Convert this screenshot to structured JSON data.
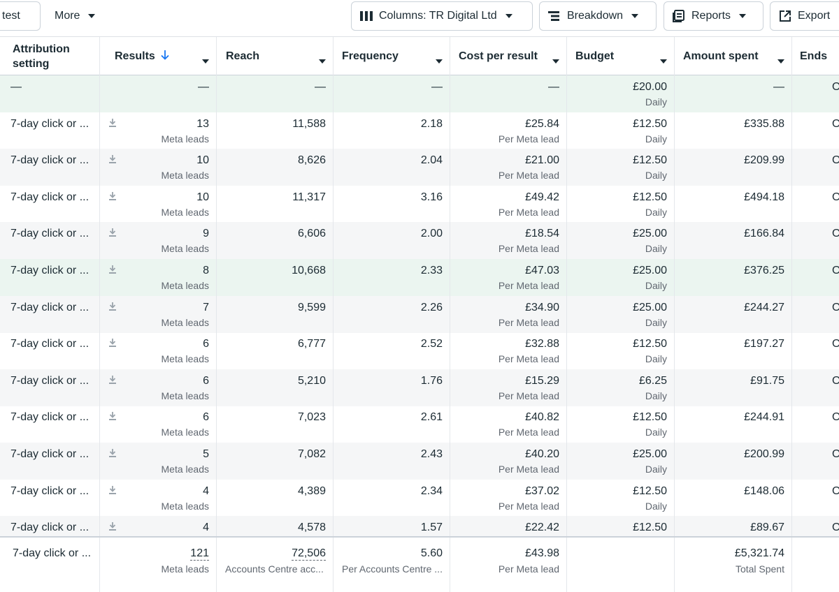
{
  "toolbar": {
    "test_label": "test",
    "more_label": "More",
    "columns_label": "Columns: TR Digital Ltd",
    "breakdown_label": "Breakdown",
    "reports_label": "Reports",
    "export_label": "Export"
  },
  "table": {
    "headers": {
      "attribution": "Attribution setting",
      "results": "Results",
      "reach": "Reach",
      "frequency": "Frequency",
      "cost": "Cost per result",
      "budget": "Budget",
      "amount": "Amount spent",
      "ends": "Ends"
    },
    "summary_row": {
      "attribution": "—",
      "results": "—",
      "reach": "—",
      "frequency": "—",
      "cost": "—",
      "budget": "£20.00",
      "budget_sub": "Daily",
      "amount": "—",
      "ends": "O"
    },
    "rows": [
      {
        "attribution": "7-day click or ...",
        "results": "13",
        "results_sub": "Meta leads",
        "reach": "11,588",
        "frequency": "2.18",
        "cost": "£25.84",
        "cost_sub": "Per Meta lead",
        "budget": "£12.50",
        "budget_sub": "Daily",
        "amount": "£335.88",
        "ends": "O"
      },
      {
        "attribution": "7-day click or ...",
        "results": "10",
        "results_sub": "Meta leads",
        "reach": "8,626",
        "frequency": "2.04",
        "cost": "£21.00",
        "cost_sub": "Per Meta lead",
        "budget": "£12.50",
        "budget_sub": "Daily",
        "amount": "£209.99",
        "ends": "O"
      },
      {
        "attribution": "7-day click or ...",
        "results": "10",
        "results_sub": "Meta leads",
        "reach": "11,317",
        "frequency": "3.16",
        "cost": "£49.42",
        "cost_sub": "Per Meta lead",
        "budget": "£12.50",
        "budget_sub": "Daily",
        "amount": "£494.18",
        "ends": "O"
      },
      {
        "attribution": "7-day click or ...",
        "results": "9",
        "results_sub": "Meta leads",
        "reach": "6,606",
        "frequency": "2.00",
        "cost": "£18.54",
        "cost_sub": "Per Meta lead",
        "budget": "£25.00",
        "budget_sub": "Daily",
        "amount": "£166.84",
        "ends": "O"
      },
      {
        "attribution": "7-day click or ...",
        "results": "8",
        "results_sub": "Meta leads",
        "reach": "10,668",
        "frequency": "2.33",
        "cost": "£47.03",
        "cost_sub": "Per Meta lead",
        "budget": "£25.00",
        "budget_sub": "Daily",
        "amount": "£376.25",
        "ends": "O"
      },
      {
        "attribution": "7-day click or ...",
        "results": "7",
        "results_sub": "Meta leads",
        "reach": "9,599",
        "frequency": "2.26",
        "cost": "£34.90",
        "cost_sub": "Per Meta lead",
        "budget": "£25.00",
        "budget_sub": "Daily",
        "amount": "£244.27",
        "ends": "O"
      },
      {
        "attribution": "7-day click or ...",
        "results": "6",
        "results_sub": "Meta leads",
        "reach": "6,777",
        "frequency": "2.52",
        "cost": "£32.88",
        "cost_sub": "Per Meta lead",
        "budget": "£12.50",
        "budget_sub": "Daily",
        "amount": "£197.27",
        "ends": "O"
      },
      {
        "attribution": "7-day click or ...",
        "results": "6",
        "results_sub": "Meta leads",
        "reach": "5,210",
        "frequency": "1.76",
        "cost": "£15.29",
        "cost_sub": "Per Meta lead",
        "budget": "£6.25",
        "budget_sub": "Daily",
        "amount": "£91.75",
        "ends": "O"
      },
      {
        "attribution": "7-day click or ...",
        "results": "6",
        "results_sub": "Meta leads",
        "reach": "7,023",
        "frequency": "2.61",
        "cost": "£40.82",
        "cost_sub": "Per Meta lead",
        "budget": "£12.50",
        "budget_sub": "Daily",
        "amount": "£244.91",
        "ends": "O"
      },
      {
        "attribution": "7-day click or ...",
        "results": "5",
        "results_sub": "Meta leads",
        "reach": "7,082",
        "frequency": "2.43",
        "cost": "£40.20",
        "cost_sub": "Per Meta lead",
        "budget": "£25.00",
        "budget_sub": "Daily",
        "amount": "£200.99",
        "ends": "O"
      },
      {
        "attribution": "7-day click or ...",
        "results": "4",
        "results_sub": "Meta leads",
        "reach": "4,389",
        "frequency": "2.34",
        "cost": "£37.02",
        "cost_sub": "Per Meta lead",
        "budget": "£12.50",
        "budget_sub": "Daily",
        "amount": "£148.06",
        "ends": "O"
      },
      {
        "attribution": "7-day click or ...",
        "results": "4",
        "results_sub": "",
        "reach": "4,578",
        "frequency": "1.57",
        "cost": "£22.42",
        "cost_sub": "",
        "budget": "£12.50",
        "budget_sub": "",
        "amount": "£89.67",
        "ends": "O"
      }
    ],
    "footer": {
      "attribution": "7-day click or ...",
      "results": "121",
      "results_sub": "Meta leads",
      "reach": "72,506",
      "reach_sub": "Accounts Centre acc...",
      "frequency": "5.60",
      "frequency_sub": "Per Accounts Centre ...",
      "cost": "£43.98",
      "cost_sub": "Per Meta lead",
      "amount": "£5,321.74",
      "amount_sub": "Total Spent"
    }
  },
  "colors": {
    "accent": "#1877f2",
    "row_alt": "#f5f6f7",
    "row_highlight": "#ebf5f0"
  }
}
